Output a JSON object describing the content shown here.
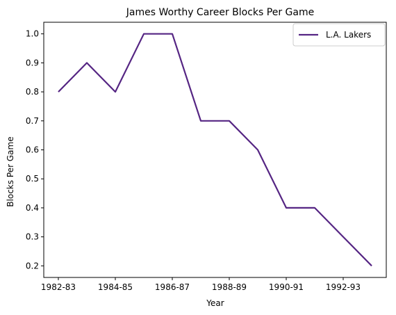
{
  "chart_data": {
    "type": "line",
    "title": "James Worthy Career Blocks Per Game",
    "xlabel": "Year",
    "ylabel": "Blocks Per Game",
    "x": [
      "1982-83",
      "1983-84",
      "1984-85",
      "1985-86",
      "1986-87",
      "1987-88",
      "1988-89",
      "1989-90",
      "1990-91",
      "1991-92",
      "1992-93",
      "1993-94"
    ],
    "x_tick_labels": [
      "1982-83",
      "1984-85",
      "1986-87",
      "1988-89",
      "1990-91",
      "1992-93"
    ],
    "series": [
      {
        "name": "L.A. Lakers",
        "color": "#552583",
        "values": [
          0.8,
          0.9,
          0.8,
          1.0,
          1.0,
          0.7,
          0.7,
          0.6,
          0.4,
          0.4,
          0.3,
          0.2
        ]
      }
    ],
    "y_ticks": [
      "0.2",
      "0.3",
      "0.4",
      "0.5",
      "0.6",
      "0.7",
      "0.8",
      "0.9",
      "1.0"
    ],
    "ylim": [
      0.16,
      1.04
    ],
    "grid": false,
    "legend_position": "upper right"
  }
}
